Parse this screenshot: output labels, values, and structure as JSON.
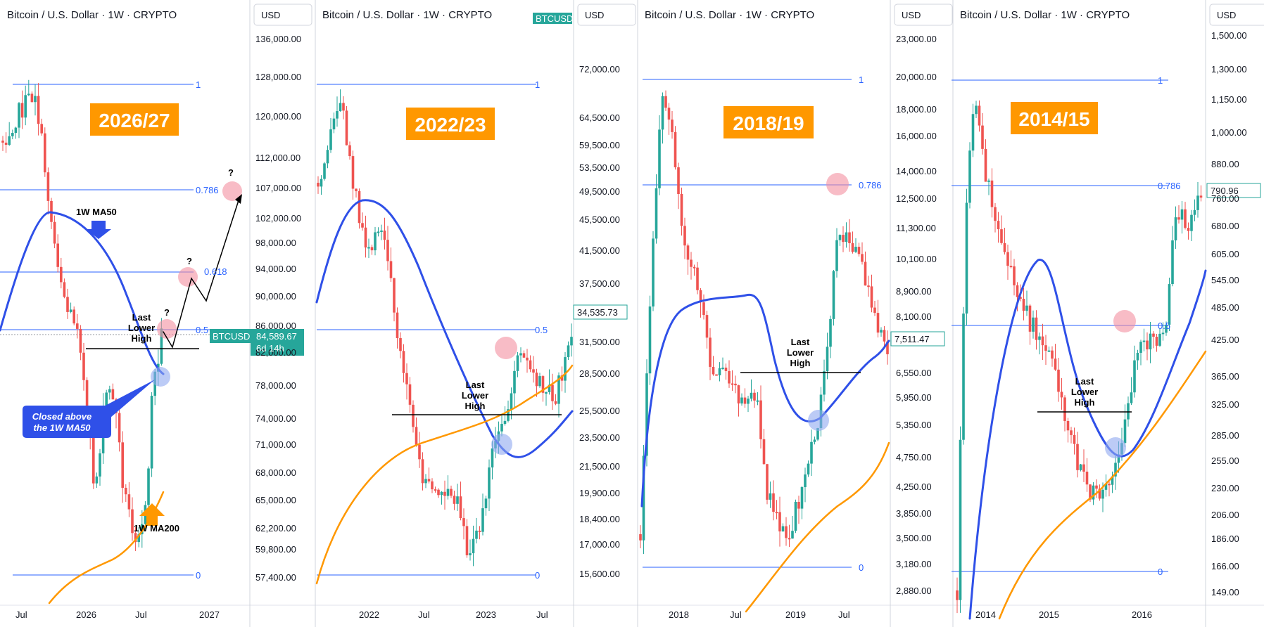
{
  "colors": {
    "up": "#26a69a",
    "down": "#ef5350",
    "ma50": "#2f50e8",
    "ma200": "#ff9800",
    "fib": "#2962ff",
    "label_bg": "#ff9800",
    "tag": "#26a69a",
    "circle_red": "#f48fa0",
    "circle_blue": "#8fa8f0",
    "callout": "#2f50e8"
  },
  "panels": [
    {
      "title": "Bitcoin / U.S. Dollar · 1W · CRYPTO",
      "currency": "USD",
      "era_label": "2026/27",
      "y_ticks": [
        "136,000.00",
        "128,000.00",
        "120,000.00",
        "112,000.00",
        "107,000.00",
        "102,000.00",
        "98,000.00",
        "94,000.00",
        "90,000.00",
        "86,000.00",
        "82,000.00",
        "78,000.00",
        "74,000.00",
        "71,000.00",
        "68,000.00",
        "65,000.00",
        "62,200.00",
        "59,800.00",
        "57,400.00"
      ],
      "x_ticks": [
        "Jul",
        "2026",
        "Jul",
        "2027"
      ],
      "fib_levels": [
        "1",
        "0.786",
        "0.618",
        "0.5",
        "0"
      ],
      "annotations": {
        "ma50": "1W MA50",
        "ma200": "1W MA200",
        "llh_1": "Last",
        "llh_2": "Lower",
        "llh_3": "High",
        "q": "?",
        "callout_1": "Closed above",
        "callout_2": "the 1W MA50"
      },
      "price_tag": {
        "symbol": "BTCUSD",
        "price": "84,589.67",
        "countdown": "6d 14h"
      }
    },
    {
      "title": "Bitcoin / U.S. Dollar · 1W · CRYPTO",
      "currency": "USD",
      "era_label": "2022/23",
      "y_ticks": [
        "72,000.00",
        "64,500.00",
        "59,500.00",
        "53,500.00",
        "49,500.00",
        "45,500.00",
        "41,500.00",
        "37,500.00",
        "31,500.00",
        "28,500.00",
        "25,500.00",
        "23,500.00",
        "21,500.00",
        "19,900.00",
        "18,400.00",
        "17,000.00",
        "15,600.00"
      ],
      "x_ticks": [
        "2022",
        "Jul",
        "2023",
        "Jul"
      ],
      "fib_levels": [
        "1",
        "0.5",
        "0"
      ],
      "annotations": {
        "llh_1": "Last",
        "llh_2": "Lower",
        "llh_3": "High"
      },
      "price_tag": {
        "price": "34,535.73"
      },
      "top_tag": "BTCUSD"
    },
    {
      "title": "Bitcoin / U.S. Dollar · 1W · CRYPTO",
      "currency": "USD",
      "era_label": "2018/19",
      "y_ticks": [
        "23,000.00",
        "20,000.00",
        "18,000.00",
        "16,000.00",
        "14,000.00",
        "12,500.00",
        "11,300.00",
        "10,100.00",
        "8,900.00",
        "8,100.00",
        "6,550.00",
        "5,950.00",
        "5,350.00",
        "4,750.00",
        "4,250.00",
        "3,850.00",
        "3,500.00",
        "3,180.00",
        "2,880.00"
      ],
      "x_ticks": [
        "2018",
        "Jul",
        "2019",
        "Jul"
      ],
      "fib_levels": [
        "1",
        "0.786",
        "0"
      ],
      "annotations": {
        "llh_1": "Last",
        "llh_2": "Lower",
        "llh_3": "High"
      },
      "price_tag": {
        "price": "7,511.47"
      }
    },
    {
      "title": "Bitcoin / U.S. Dollar · 1W · CRYPTO",
      "currency": "USD",
      "era_label": "2014/15",
      "y_ticks": [
        "1,500.00",
        "1,300.00",
        "1,150.00",
        "1,000.00",
        "880.00",
        "760.00",
        "680.00",
        "605.00",
        "545.00",
        "485.00",
        "425.00",
        "365.00",
        "325.00",
        "285.00",
        "255.00",
        "230.00",
        "206.00",
        "186.00",
        "166.00",
        "149.00"
      ],
      "x_ticks": [
        "2014",
        "2015",
        "2016"
      ],
      "fib_levels": [
        "1",
        "0.786",
        "0.5",
        "0"
      ],
      "annotations": {
        "llh_1": "Last",
        "llh_2": "Lower",
        "llh_3": "High"
      },
      "price_tag": {
        "price": "790.96"
      }
    }
  ],
  "chart_data": [
    {
      "type": "candlestick",
      "title": "Bitcoin / U.S. Dollar · 1W · CRYPTO",
      "label": "2026/27",
      "x_ticks": [
        "Jul",
        "2026",
        "Jul",
        "2027"
      ],
      "y_range": [
        57400,
        136000
      ],
      "y_scale": "log",
      "series": [
        {
          "name": "1W MA50"
        },
        {
          "name": "1W MA200"
        }
      ],
      "fib_levels": [
        {
          "level": "1",
          "price": 126000
        },
        {
          "level": "0.786",
          "price": 106500
        },
        {
          "level": "0.618",
          "price": 93500
        },
        {
          "level": "0.5",
          "price": 85800
        },
        {
          "level": "0",
          "price": 57400
        }
      ],
      "last_price": 84589.67
    },
    {
      "type": "candlestick",
      "title": "Bitcoin / U.S. Dollar · 1W · CRYPTO",
      "label": "2022/23",
      "x_ticks": [
        "2022",
        "Jul",
        "2023",
        "Jul"
      ],
      "y_range": [
        15600,
        72000
      ],
      "y_scale": "log",
      "fib_levels": [
        {
          "level": "1",
          "price": 69000
        },
        {
          "level": "0.5",
          "price": 33500
        },
        {
          "level": "0",
          "price": 15600
        }
      ],
      "last_price": 34535.73
    },
    {
      "type": "candlestick",
      "title": "Bitcoin / U.S. Dollar · 1W · CRYPTO",
      "label": "2018/19",
      "x_ticks": [
        "2018",
        "Jul",
        "2019",
        "Jul"
      ],
      "y_range": [
        2880,
        23000
      ],
      "y_scale": "log",
      "fib_levels": [
        {
          "level": "1",
          "price": 19800
        },
        {
          "level": "0.786",
          "price": 13300
        },
        {
          "level": "0",
          "price": 3150
        }
      ],
      "last_price": 7511.47
    },
    {
      "type": "candlestick",
      "title": "Bitcoin / U.S. Dollar · 1W · CRYPTO",
      "label": "2014/15",
      "x_ticks": [
        "2014",
        "2015",
        "2016"
      ],
      "y_range": [
        149,
        1500
      ],
      "y_scale": "log",
      "fib_levels": [
        {
          "level": "1",
          "price": 1160
        },
        {
          "level": "0.786",
          "price": 790
        },
        {
          "level": "0.5",
          "price": 450
        },
        {
          "level": "0",
          "price": 160
        }
      ],
      "last_price": 790.96
    }
  ]
}
